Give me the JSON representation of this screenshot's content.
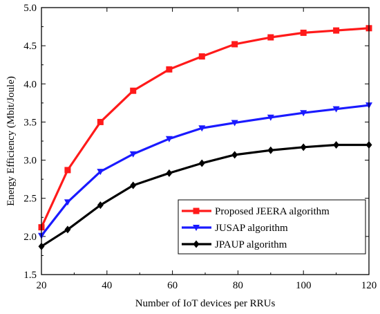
{
  "chart_data": {
    "type": "line",
    "title": "",
    "xlabel": "Number of IoT devices per RRUs",
    "ylabel": "Energy Efficiency (Mbit/Joule)",
    "xlim": [
      20,
      120
    ],
    "ylim": [
      1.5,
      5.0
    ],
    "xticks": [
      20,
      40,
      60,
      80,
      100,
      120
    ],
    "yticks": [
      "1.5",
      "2.0",
      "2.5",
      "3.0",
      "3.5",
      "4.0",
      "4.5",
      "5.0"
    ],
    "grid": false,
    "legend_position": "bottom-right",
    "series": [
      {
        "name": "Proposed JEERA algorithm",
        "color": "#ff1a1a",
        "marker": "square",
        "x": [
          20,
          28,
          38,
          48,
          59,
          69,
          79,
          90,
          100,
          110,
          120
        ],
        "y": [
          2.12,
          2.87,
          3.5,
          3.91,
          4.19,
          4.36,
          4.52,
          4.61,
          4.67,
          4.7,
          4.73
        ]
      },
      {
        "name": "JUSAP algorithm",
        "color": "#1a1aff",
        "marker": "triangle-down",
        "x": [
          20,
          28,
          38,
          48,
          59,
          69,
          79,
          90,
          100,
          110,
          120
        ],
        "y": [
          2.01,
          2.45,
          2.85,
          3.08,
          3.28,
          3.42,
          3.49,
          3.56,
          3.62,
          3.67,
          3.72
        ]
      },
      {
        "name": "JPAUP algorithm",
        "color": "#000000",
        "marker": "diamond",
        "x": [
          20,
          28,
          38,
          48,
          59,
          69,
          79,
          90,
          100,
          110,
          120
        ],
        "y": [
          1.87,
          2.09,
          2.41,
          2.67,
          2.83,
          2.96,
          3.07,
          3.13,
          3.17,
          3.2,
          3.2
        ]
      }
    ]
  }
}
